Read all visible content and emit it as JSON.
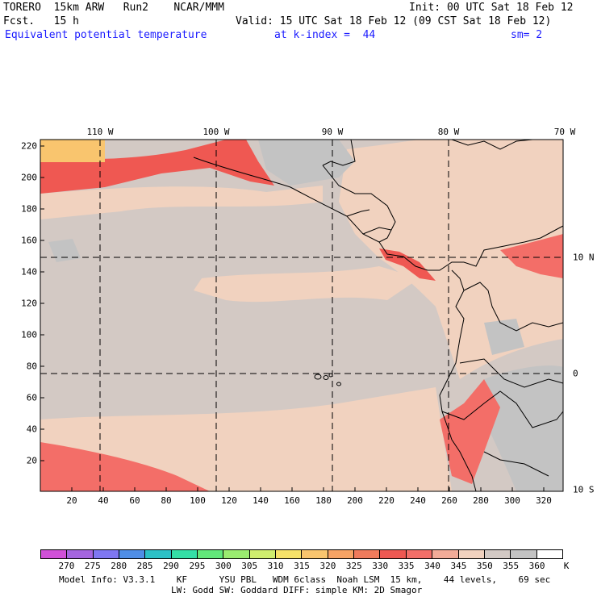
{
  "header": {
    "line1_left": "TORERO  15km ARW   Run2    NCAR/MMM",
    "line1_right": "Init: 00 UTC Sat 18 Feb 12",
    "line2_left": "Fcst.   15 h",
    "line2_right": "Valid: 15 UTC Sat 18 Feb 12 (09 CST Sat 18 Feb 12)",
    "field": "Equivalent potential temperature",
    "level": "at k-index =  44",
    "smooth": "sm= 2"
  },
  "map": {
    "lon_labels": [
      "110 W",
      "100 W",
      "90 W",
      "80 W",
      "70 W"
    ],
    "lat_labels": [
      "10 N",
      "0",
      "10 S"
    ],
    "y_ticks": [
      "220",
      "200",
      "180",
      "160",
      "140",
      "120",
      "100",
      "80",
      "60",
      "40",
      "20"
    ],
    "x_ticks": [
      "20",
      "40",
      "60",
      "80",
      "100",
      "120",
      "140",
      "160",
      "180",
      "200",
      "220",
      "240",
      "260",
      "280",
      "300",
      "320"
    ]
  },
  "colorbar": {
    "labels": [
      "270",
      "275",
      "280",
      "285",
      "290",
      "295",
      "300",
      "305",
      "310",
      "315",
      "320",
      "325",
      "330",
      "335",
      "340",
      "345",
      "350",
      "355",
      "360"
    ],
    "unit": "K",
    "colors": [
      "#d050d8",
      "#a565e0",
      "#7f77f2",
      "#4f8ee6",
      "#2bc0c6",
      "#34e0a6",
      "#62e87a",
      "#9aec70",
      "#cfee6e",
      "#f6e268",
      "#f9c56e",
      "#f7a364",
      "#f07b5c",
      "#ef5852",
      "#f36e68",
      "#f2ab98",
      "#f1d2bf",
      "#d3c9c4",
      "#c3c3c3",
      "#ffffff"
    ]
  },
  "footer": {
    "line1": "Model Info: V3.3.1    KF      YSU PBL   WDM 6class  Noah LSM  15 km,    44 levels,    69 sec",
    "line2": "LW: Godd SW: Goddard DIFF: simple KM: 2D Smagor"
  }
}
